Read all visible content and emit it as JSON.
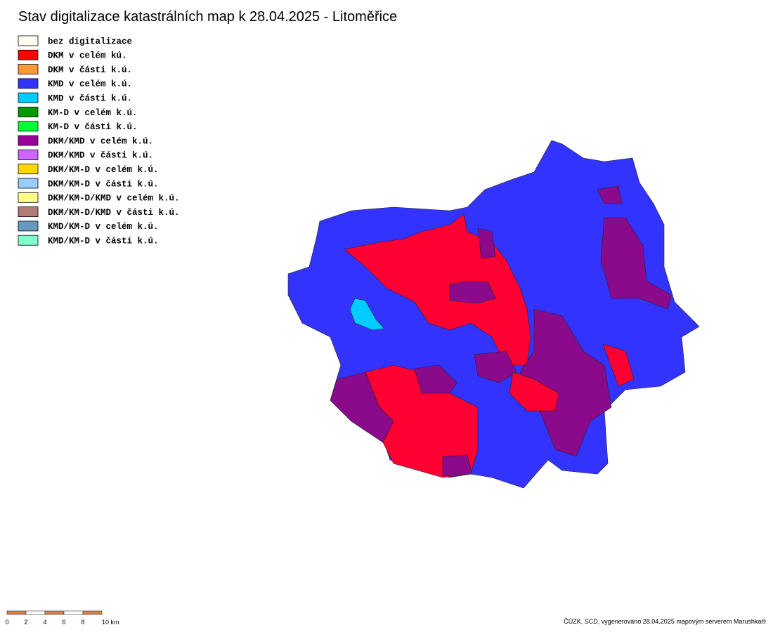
{
  "title": "Stav digitalizace katastrálních map k 28.04.2025 - Litoměřice",
  "legend": [
    {
      "label": "bez digitalizace",
      "color": "#ffffee"
    },
    {
      "label": "DKM v celém kú.",
      "color": "#ff0000"
    },
    {
      "label": "DKM v části k.ú.",
      "color": "#ff9933"
    },
    {
      "label": "KMD v celém k.ú.",
      "color": "#3333ff"
    },
    {
      "label": "KMD v části k.ú.",
      "color": "#00ccff"
    },
    {
      "label": "KM-D v celém k.ú.",
      "color": "#009900"
    },
    {
      "label": "KM-D v části k.ú.",
      "color": "#00ff33"
    },
    {
      "label": "DKM/KMD v celém k.ú.",
      "color": "#990099"
    },
    {
      "label": "DKM/KMD v části k.ú.",
      "color": "#cc66ff"
    },
    {
      "label": "DKM/KM-D v celém k.ú.",
      "color": "#ffd700"
    },
    {
      "label": "DKM/KM-D v části k.ú.",
      "color": "#99ccff"
    },
    {
      "label": "DKM/KM-D/KMD v celém k.ú.",
      "color": "#ffff88"
    },
    {
      "label": "DKM/KM-D/KMD v části k.ú.",
      "color": "#b37b73"
    },
    {
      "label": "KMD/KM-D v celém k.ú.",
      "color": "#6699bb"
    },
    {
      "label": "KMD/KM-D v části k.ú.",
      "color": "#80ffcc"
    }
  ],
  "scale_bar": {
    "labels": [
      "0",
      "2",
      "4",
      "6",
      "8",
      "10 km"
    ]
  },
  "credit": "ČÚZK, SCD, vygenerováno 28.04.2025 mapovým serverem Marushka®"
}
